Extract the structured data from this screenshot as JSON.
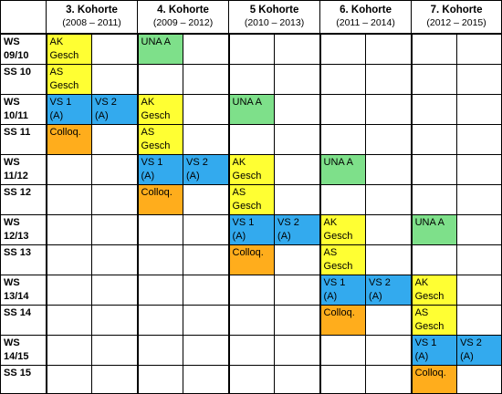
{
  "cohorts": [
    {
      "name": "3. Kohorte",
      "years": "(2008 – 2011)"
    },
    {
      "name": "4. Kohorte",
      "years": "(2009 – 2012)"
    },
    {
      "name": "5 Kohorte",
      "years": "(2010 – 2013)"
    },
    {
      "name": "6. Kohorte",
      "years": "(2011 – 2014)"
    },
    {
      "name": "7. Kohorte",
      "years": "(2012 – 2015)"
    }
  ],
  "legend_colors": {
    "green": "#7ee08a",
    "yellow": "#ffff33",
    "blue": "#33aaee",
    "orange": "#ffad1c"
  },
  "rows": [
    {
      "sem": "WS\n09/10",
      "cells": [
        {
          "text": "AK\nGesch",
          "color": "yellow"
        },
        {
          "text": "",
          "color": ""
        },
        {
          "text": "UNA A",
          "color": "green"
        },
        {
          "text": "",
          "color": ""
        },
        {
          "text": "",
          "color": ""
        },
        {
          "text": "",
          "color": ""
        },
        {
          "text": "",
          "color": ""
        },
        {
          "text": "",
          "color": ""
        },
        {
          "text": "",
          "color": ""
        },
        {
          "text": "",
          "color": ""
        }
      ]
    },
    {
      "sem": "SS 10",
      "cells": [
        {
          "text": "AS\nGesch",
          "color": "yellow"
        },
        {
          "text": "",
          "color": ""
        },
        {
          "text": "",
          "color": ""
        },
        {
          "text": "",
          "color": ""
        },
        {
          "text": "",
          "color": ""
        },
        {
          "text": "",
          "color": ""
        },
        {
          "text": "",
          "color": ""
        },
        {
          "text": "",
          "color": ""
        },
        {
          "text": "",
          "color": ""
        },
        {
          "text": "",
          "color": ""
        }
      ]
    },
    {
      "sem": "WS\n10/11",
      "cells": [
        {
          "text": "VS 1\n(A)",
          "color": "blue"
        },
        {
          "text": "VS 2\n(A)",
          "color": "blue"
        },
        {
          "text": "AK\nGesch",
          "color": "yellow"
        },
        {
          "text": "",
          "color": ""
        },
        {
          "text": "UNA A",
          "color": "green"
        },
        {
          "text": "",
          "color": ""
        },
        {
          "text": "",
          "color": ""
        },
        {
          "text": "",
          "color": ""
        },
        {
          "text": "",
          "color": ""
        },
        {
          "text": "",
          "color": ""
        }
      ]
    },
    {
      "sem": "SS 11",
      "cells": [
        {
          "text": "Colloq.",
          "color": "orange"
        },
        {
          "text": "",
          "color": ""
        },
        {
          "text": "AS\nGesch",
          "color": "yellow"
        },
        {
          "text": "",
          "color": ""
        },
        {
          "text": "",
          "color": ""
        },
        {
          "text": "",
          "color": ""
        },
        {
          "text": "",
          "color": ""
        },
        {
          "text": "",
          "color": ""
        },
        {
          "text": "",
          "color": ""
        },
        {
          "text": "",
          "color": ""
        }
      ]
    },
    {
      "sem": "WS\n11/12",
      "cells": [
        {
          "text": "",
          "color": ""
        },
        {
          "text": "",
          "color": ""
        },
        {
          "text": "VS 1\n(A)",
          "color": "blue"
        },
        {
          "text": "VS 2\n(A)",
          "color": "blue"
        },
        {
          "text": "AK\nGesch",
          "color": "yellow"
        },
        {
          "text": "",
          "color": ""
        },
        {
          "text": "UNA A",
          "color": "green"
        },
        {
          "text": "",
          "color": ""
        },
        {
          "text": "",
          "color": ""
        },
        {
          "text": "",
          "color": ""
        }
      ]
    },
    {
      "sem": "SS 12",
      "cells": [
        {
          "text": "",
          "color": ""
        },
        {
          "text": "",
          "color": ""
        },
        {
          "text": "Colloq.",
          "color": "orange"
        },
        {
          "text": "",
          "color": ""
        },
        {
          "text": "AS\nGesch",
          "color": "yellow"
        },
        {
          "text": "",
          "color": ""
        },
        {
          "text": "",
          "color": ""
        },
        {
          "text": "",
          "color": ""
        },
        {
          "text": "",
          "color": ""
        },
        {
          "text": "",
          "color": ""
        }
      ]
    },
    {
      "sem": "WS\n12/13",
      "cells": [
        {
          "text": "",
          "color": ""
        },
        {
          "text": "",
          "color": ""
        },
        {
          "text": "",
          "color": ""
        },
        {
          "text": "",
          "color": ""
        },
        {
          "text": "VS 1\n(A)",
          "color": "blue"
        },
        {
          "text": "VS 2\n(A)",
          "color": "blue"
        },
        {
          "text": "AK\nGesch",
          "color": "yellow"
        },
        {
          "text": "",
          "color": ""
        },
        {
          "text": "UNA A",
          "color": "green"
        },
        {
          "text": "",
          "color": ""
        }
      ]
    },
    {
      "sem": "SS 13",
      "cells": [
        {
          "text": "",
          "color": ""
        },
        {
          "text": "",
          "color": ""
        },
        {
          "text": "",
          "color": ""
        },
        {
          "text": "",
          "color": ""
        },
        {
          "text": "Colloq.",
          "color": "orange"
        },
        {
          "text": "",
          "color": ""
        },
        {
          "text": "AS\nGesch",
          "color": "yellow"
        },
        {
          "text": "",
          "color": ""
        },
        {
          "text": "",
          "color": ""
        },
        {
          "text": "",
          "color": ""
        }
      ]
    },
    {
      "sem": "WS\n13/14",
      "cells": [
        {
          "text": "",
          "color": ""
        },
        {
          "text": "",
          "color": ""
        },
        {
          "text": "",
          "color": ""
        },
        {
          "text": "",
          "color": ""
        },
        {
          "text": "",
          "color": ""
        },
        {
          "text": "",
          "color": ""
        },
        {
          "text": "VS 1\n(A)",
          "color": "blue"
        },
        {
          "text": "VS 2\n(A)",
          "color": "blue"
        },
        {
          "text": "AK\nGesch",
          "color": "yellow"
        },
        {
          "text": "",
          "color": ""
        }
      ]
    },
    {
      "sem": "SS 14",
      "cells": [
        {
          "text": "",
          "color": ""
        },
        {
          "text": "",
          "color": ""
        },
        {
          "text": "",
          "color": ""
        },
        {
          "text": "",
          "color": ""
        },
        {
          "text": "",
          "color": ""
        },
        {
          "text": "",
          "color": ""
        },
        {
          "text": "Colloq.",
          "color": "orange"
        },
        {
          "text": "",
          "color": ""
        },
        {
          "text": "AS\nGesch",
          "color": "yellow"
        },
        {
          "text": "",
          "color": ""
        }
      ]
    },
    {
      "sem": "WS\n14/15",
      "cells": [
        {
          "text": "",
          "color": ""
        },
        {
          "text": "",
          "color": ""
        },
        {
          "text": "",
          "color": ""
        },
        {
          "text": "",
          "color": ""
        },
        {
          "text": "",
          "color": ""
        },
        {
          "text": "",
          "color": ""
        },
        {
          "text": "",
          "color": ""
        },
        {
          "text": "",
          "color": ""
        },
        {
          "text": "VS 1\n(A)",
          "color": "blue"
        },
        {
          "text": "VS 2\n(A)",
          "color": "blue"
        }
      ]
    },
    {
      "sem": "SS 15",
      "cells": [
        {
          "text": "",
          "color": ""
        },
        {
          "text": "",
          "color": ""
        },
        {
          "text": "",
          "color": ""
        },
        {
          "text": "",
          "color": ""
        },
        {
          "text": "",
          "color": ""
        },
        {
          "text": "",
          "color": ""
        },
        {
          "text": "",
          "color": ""
        },
        {
          "text": "",
          "color": ""
        },
        {
          "text": "Colloq.",
          "color": "orange"
        },
        {
          "text": "",
          "color": ""
        }
      ]
    }
  ]
}
